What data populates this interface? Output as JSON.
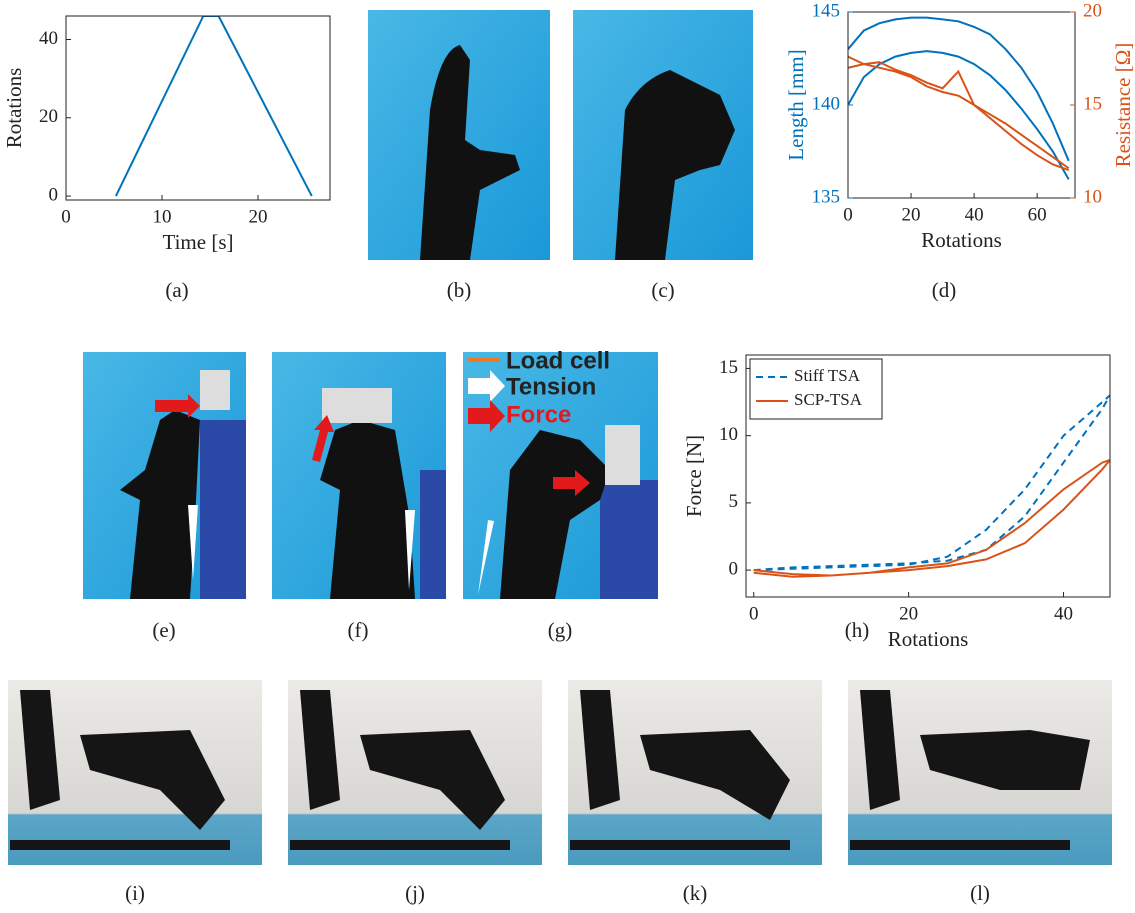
{
  "chart_data": [
    {
      "type": "line",
      "xlabel": "Time [s]",
      "ylabel": "Rotations",
      "x": [
        0,
        5.2,
        14.3,
        15.9,
        25.6,
        27.5
      ],
      "series": [
        {
          "color": "#0072bd",
          "values": [
            null,
            0,
            46,
            46,
            0,
            null
          ]
        }
      ],
      "xlim": [
        0,
        27.5
      ],
      "ylim": [
        -1,
        46
      ],
      "xticks": [
        0,
        10,
        20
      ],
      "yticks": [
        0,
        20,
        40
      ]
    },
    {
      "type": "line",
      "xlabel": "Rotations",
      "ylabel": "Length [mm]",
      "y2label": "Resistance [Ω]",
      "x": [
        0,
        5,
        10,
        15,
        20,
        25,
        30,
        35,
        40,
        45,
        50,
        55,
        60,
        65,
        70
      ],
      "series": [
        {
          "color": "#0072bd",
          "values": [
            143,
            144,
            144.4,
            144.6,
            144.7,
            144.7,
            144.6,
            144.5,
            144.2,
            143.8,
            143.0,
            142,
            140.7,
            139.0,
            137.0
          ]
        },
        {
          "color": "#0072bd",
          "values": [
            140,
            141.5,
            142.2,
            142.6,
            142.8,
            142.9,
            142.8,
            142.6,
            142.2,
            141.6,
            140.8,
            139.8,
            138.7,
            137.5,
            136.0
          ]
        },
        {
          "color": "#d95319",
          "axis": "y2",
          "values": [
            17.6,
            17.2,
            17.0,
            16.8,
            16.5,
            16.0,
            15.7,
            15.5,
            15.0,
            14.3,
            13.6,
            12.9,
            12.3,
            11.8,
            11.5
          ]
        },
        {
          "color": "#d95319",
          "axis": "y2",
          "values": [
            17.0,
            17.2,
            17.3,
            16.9,
            16.6,
            16.2,
            15.9,
            16.8,
            15.0,
            14.5,
            14.0,
            13.4,
            12.8,
            12.2,
            11.6
          ]
        }
      ],
      "xlim": [
        0,
        72
      ],
      "ylim": [
        135,
        145
      ],
      "y2lim": [
        10,
        20
      ],
      "xticks": [
        0,
        20,
        40,
        60
      ],
      "yticks": [
        135,
        140,
        145
      ],
      "y2ticks": [
        10,
        15,
        20
      ]
    },
    {
      "type": "line",
      "xlabel": "Rotations",
      "ylabel": "Force [N]",
      "legend": "upper left",
      "x": [
        0,
        5,
        10,
        15,
        20,
        25,
        30,
        35,
        40,
        45,
        46,
        45,
        40,
        35,
        30,
        25,
        20,
        15,
        10,
        5,
        0
      ],
      "series": [
        {
          "name": "Stiff TSA",
          "color": "#0072bd",
          "style": "dashed",
          "values": [
            0,
            0.2,
            0.3,
            0.4,
            0.5,
            0.7,
            1.5,
            4,
            8,
            12,
            13,
            12.5,
            10,
            6,
            3,
            1,
            0.4,
            0.3,
            0.2,
            0.1,
            0
          ]
        },
        {
          "name": "SCP-TSA",
          "color": "#d95319",
          "style": "solid",
          "values": [
            0,
            -0.3,
            -0.4,
            -0.2,
            0,
            0.3,
            0.8,
            2,
            4.5,
            7.5,
            8.2,
            8,
            6,
            3.5,
            1.5,
            0.5,
            0.2,
            -0.2,
            -0.4,
            -0.5,
            -0.2
          ]
        }
      ],
      "xlim": [
        -1,
        46
      ],
      "ylim": [
        -2,
        16
      ],
      "xticks": [
        0,
        20,
        40
      ],
      "yticks": [
        0,
        5,
        10,
        15
      ]
    }
  ],
  "captions": [
    "(a)",
    "(b)",
    "(c)",
    "(d)",
    "(e)",
    "(f)",
    "(g)",
    "(h)",
    "(i)",
    "(j)",
    "(k)",
    "(l)"
  ],
  "photo_labels": [
    "Load cell",
    "Tension",
    "Force"
  ]
}
